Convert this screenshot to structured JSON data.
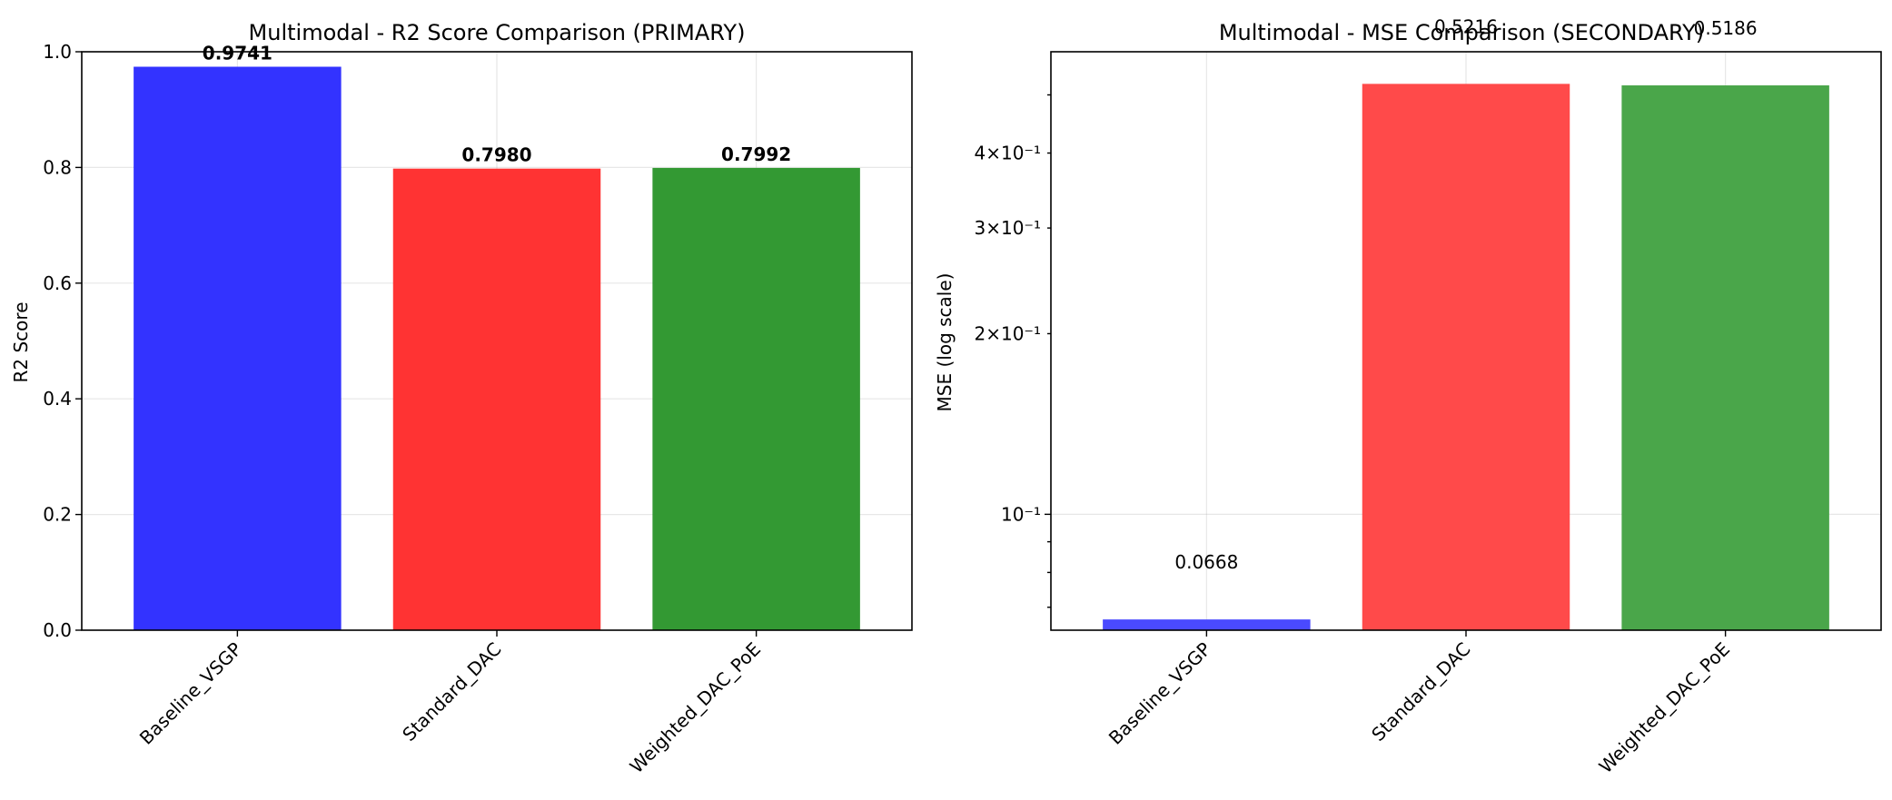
{
  "chart_data": [
    {
      "type": "bar",
      "title": "Multimodal - R2 Score Comparison (PRIMARY)",
      "xlabel": "",
      "ylabel": "R2 Score",
      "categories": [
        "Baseline_VSGP",
        "Standard_DAC",
        "Weighted_DAC_PoE"
      ],
      "values": [
        0.9741,
        0.798,
        0.7992
      ],
      "value_labels": [
        "0.9741",
        "0.7980",
        "0.7992"
      ],
      "value_labels_bold": true,
      "bar_colors": [
        "#3333ff",
        "#ff3333",
        "#339933"
      ],
      "ylim": [
        0,
        1.0
      ],
      "yscale": "linear",
      "yticks": [
        0.0,
        0.2,
        0.4,
        0.6,
        0.8,
        1.0
      ],
      "ytick_labels": [
        "0.0",
        "0.2",
        "0.4",
        "0.6",
        "0.8",
        "1.0"
      ],
      "grid": true
    },
    {
      "type": "bar",
      "title": "Multimodal - MSE Comparison (SECONDARY)",
      "xlabel": "",
      "ylabel": "MSE (log scale)",
      "categories": [
        "Baseline_VSGP",
        "Standard_DAC",
        "Weighted_DAC_PoE"
      ],
      "values": [
        0.0668,
        0.5216,
        0.5186
      ],
      "value_labels": [
        "0.0668",
        "0.5216",
        "0.5186"
      ],
      "value_labels_bold": false,
      "bar_colors": [
        "#4a4aff",
        "#ff4a4a",
        "#4aa64a"
      ],
      "ylim": [
        0.0641,
        0.59
      ],
      "yscale": "log",
      "yticks_major": [
        0.1
      ],
      "yticks_major_labels": [
        "10⁻¹"
      ],
      "yticks_minor_labeled": [
        0.2,
        0.3,
        0.4
      ],
      "yticks_minor_labels": [
        "2×10⁻¹",
        "3×10⁻¹",
        "4×10⁻¹"
      ],
      "yticks_minor_unlabeled": [
        0.07,
        0.08,
        0.09,
        0.5
      ],
      "grid": true
    }
  ]
}
